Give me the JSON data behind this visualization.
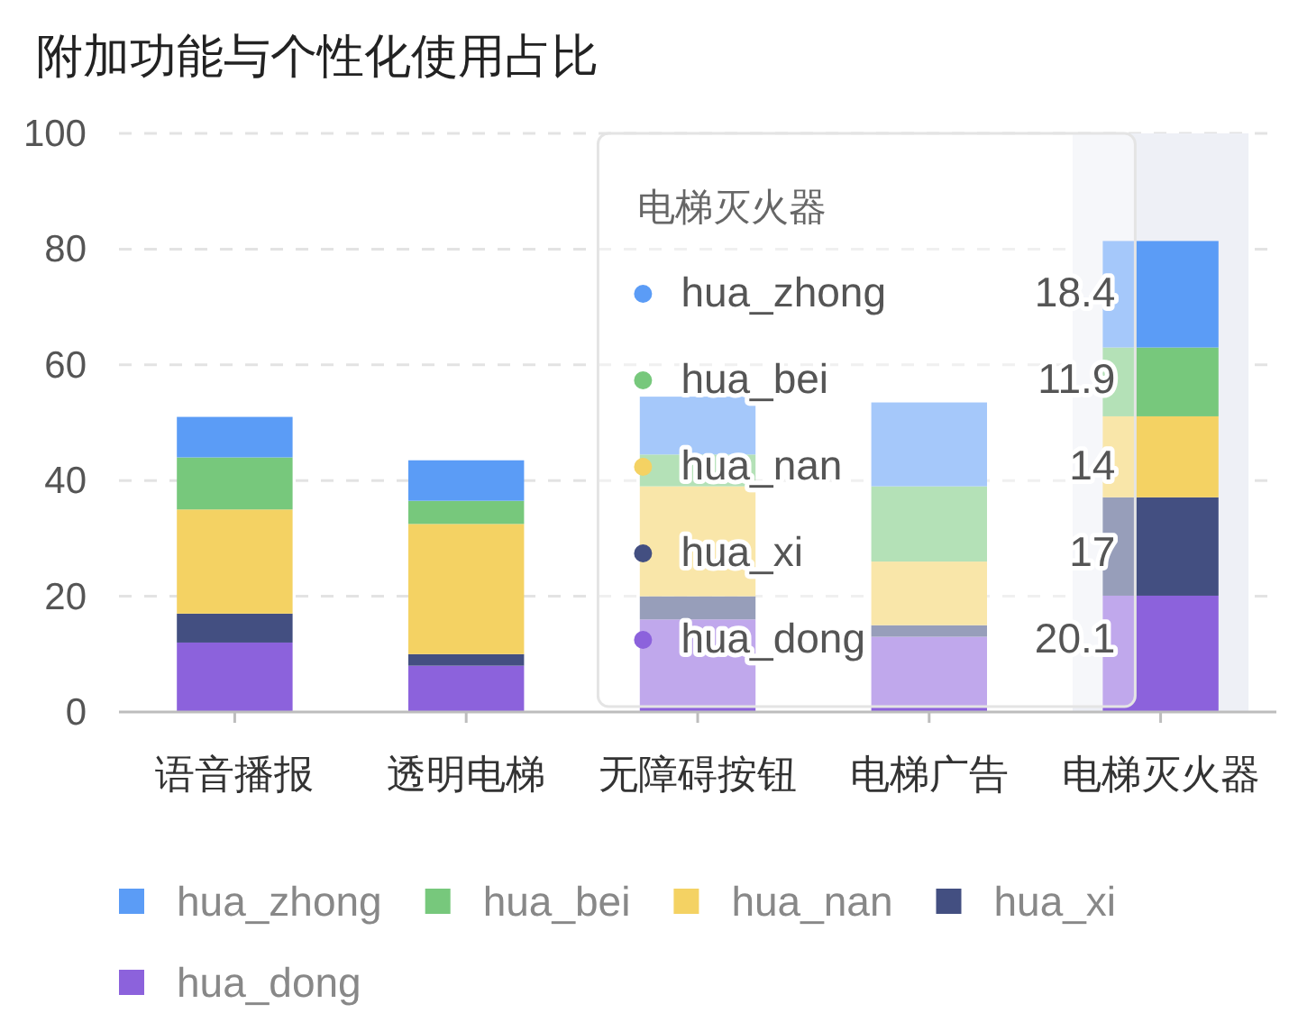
{
  "chart_data": {
    "type": "bar",
    "title": "附加功能与个性化使用占比",
    "categories": [
      "语音播报",
      "透明电梯",
      "无障碍按钮",
      "电梯广告",
      "电梯灭火器"
    ],
    "stacked": true,
    "ylim": [
      0,
      100
    ],
    "yticks": [
      0,
      20,
      40,
      60,
      80,
      100
    ],
    "grid": "y",
    "legend": "bottom",
    "bands": [
      {
        "axis": "x",
        "from": "电梯灭火器",
        "to": "电梯灭火器",
        "color": "#eef0f6"
      }
    ],
    "series": [
      {
        "name": "hua_dong",
        "color": "#8c62dc",
        "values": [
          12,
          8,
          16,
          13,
          20.1
        ],
        "value_labels": [
          null,
          null,
          null,
          null,
          "20.1"
        ]
      },
      {
        "name": "hua_xi",
        "color": "#434f81",
        "values": [
          5,
          2,
          4,
          2,
          17
        ],
        "value_labels": [
          null,
          null,
          null,
          null,
          "17"
        ]
      },
      {
        "name": "hua_nan",
        "color": "#f4d263",
        "values": [
          18,
          22.5,
          19,
          11,
          14
        ],
        "value_labels": [
          null,
          null,
          null,
          null,
          "14"
        ]
      },
      {
        "name": "hua_bei",
        "color": "#77c87c",
        "values": [
          9,
          4,
          5.5,
          13,
          11.9
        ],
        "value_labels": [
          null,
          null,
          null,
          null,
          "11.9"
        ]
      },
      {
        "name": "hua_zhong",
        "color": "#5b9cf6",
        "values": [
          7,
          7,
          10,
          14.5,
          18.4
        ],
        "value_labels": [
          null,
          null,
          null,
          null,
          "18.4"
        ]
      }
    ]
  }
}
